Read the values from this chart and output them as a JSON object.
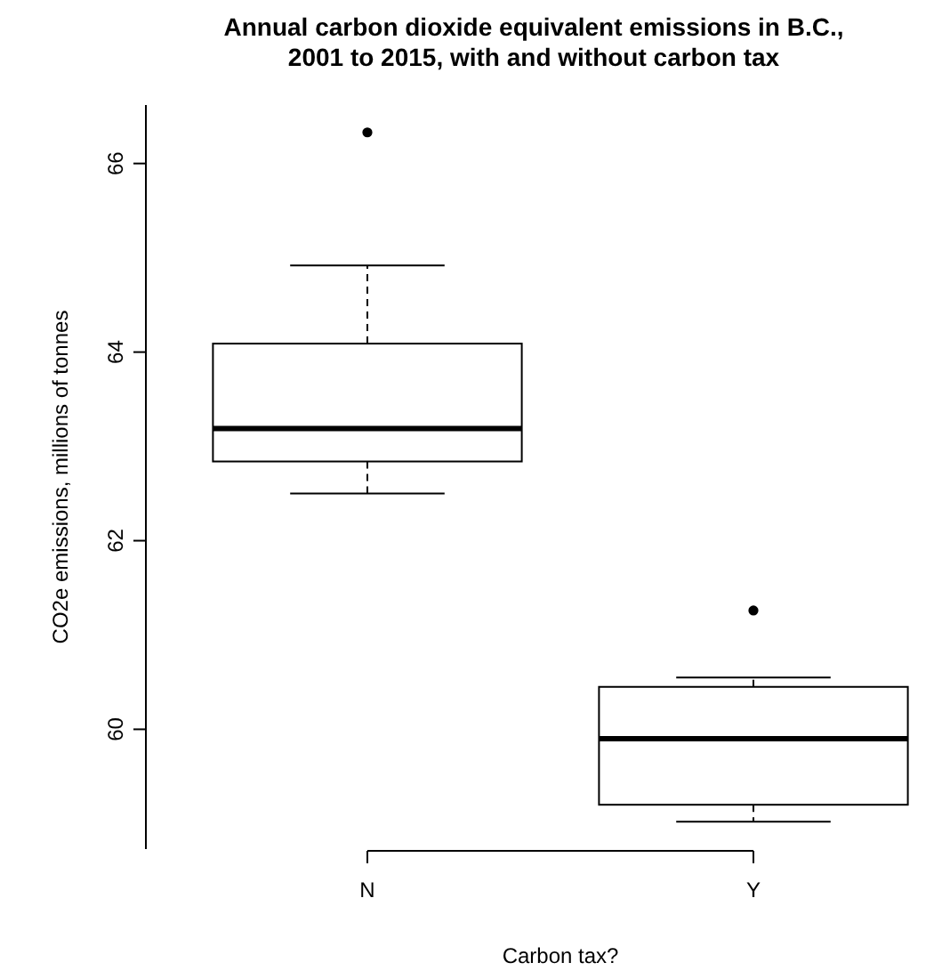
{
  "chart_data": {
    "type": "box",
    "title": "Annual carbon dioxide equivalent emissions in B.C.,\n2001 to 2015, with and without carbon tax",
    "xlabel": "Carbon tax?",
    "ylabel": "CO2e emissions, millions of tonnes",
    "categories": [
      "N",
      "Y"
    ],
    "boxes": [
      {
        "low": 62.5,
        "q1": 62.84,
        "median": 63.19,
        "q3": 64.09,
        "high": 64.92,
        "outliers": [
          66.33
        ]
      },
      {
        "low": 59.02,
        "q1": 59.2,
        "median": 59.9,
        "q3": 60.45,
        "high": 60.55,
        "outliers": [
          61.26
        ]
      }
    ],
    "ylim": [
      58.73,
      66.62
    ],
    "yticks": [
      60,
      62,
      64,
      66
    ],
    "grid": false
  }
}
